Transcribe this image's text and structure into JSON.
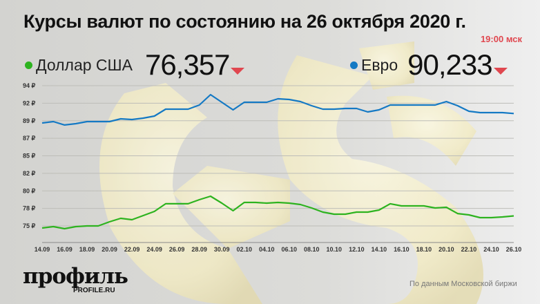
{
  "header": {
    "title": "Курсы валют по состоянию на 26 октября 2020 г.",
    "time": "19:00 мск"
  },
  "currencies": [
    {
      "name": "Доллар США",
      "value": "76,357",
      "trend": "down",
      "color": "#2db31f"
    },
    {
      "name": "Евро",
      "value": "90,233",
      "trend": "down",
      "color": "#1479c4"
    }
  ],
  "colors": {
    "down_arrow": "#e0474f",
    "time": "#e0474f"
  },
  "footer": {
    "logo": "профиль",
    "logo_sub": "PROFILE.RU",
    "source": "По данным Московской биржи"
  },
  "chart_data": {
    "type": "line",
    "grid": true,
    "legend": "top",
    "y_tick_labels": [
      "94 ₽",
      "92 ₽",
      "89 ₽",
      "87 ₽",
      "85 ₽",
      "82 ₽",
      "80 ₽",
      "78 ₽",
      "75 ₽"
    ],
    "ylim": [
      75,
      94
    ],
    "x_tick_labels": [
      "14.09",
      "16.09",
      "18.09",
      "20.09",
      "22.09",
      "24.09",
      "26.09",
      "28.09",
      "30.09",
      "02.10",
      "04.10",
      "06.10",
      "08.10",
      "10.10",
      "12.10",
      "14.10",
      "16.10",
      "18.10",
      "20.10",
      "22.10",
      "24.10",
      "26.10"
    ],
    "x": [
      "14.09",
      "15.09",
      "16.09",
      "17.09",
      "18.09",
      "19.09",
      "20.09",
      "21.09",
      "22.09",
      "23.09",
      "24.09",
      "25.09",
      "26.09",
      "27.09",
      "28.09",
      "29.09",
      "30.09",
      "01.10",
      "02.10",
      "03.10",
      "04.10",
      "05.10",
      "06.10",
      "07.10",
      "08.10",
      "09.10",
      "10.10",
      "11.10",
      "12.10",
      "13.10",
      "14.10",
      "15.10",
      "16.10",
      "17.10",
      "18.10",
      "19.10",
      "20.10",
      "21.10",
      "22.10",
      "23.10",
      "24.10",
      "25.10",
      "26.10"
    ],
    "series": [
      {
        "name": "Евро",
        "color": "#1479c4",
        "values": [
          88.95,
          89.13,
          88.67,
          88.85,
          89.13,
          89.13,
          89.13,
          89.51,
          89.41,
          89.6,
          89.88,
          90.82,
          90.82,
          90.82,
          91.38,
          92.78,
          91.75,
          90.72,
          91.75,
          91.75,
          91.75,
          92.22,
          92.13,
          91.85,
          91.29,
          90.82,
          90.82,
          90.91,
          90.91,
          90.44,
          90.72,
          91.38,
          91.38,
          91.38,
          91.38,
          91.38,
          91.85,
          91.29,
          90.54,
          90.35,
          90.35,
          90.35,
          90.23
        ]
      },
      {
        "name": "Доллар США",
        "color": "#2db31f",
        "values": [
          74.72,
          74.91,
          74.63,
          74.91,
          75.0,
          75.0,
          75.56,
          76.03,
          75.84,
          76.4,
          76.97,
          78.0,
          78.0,
          78.0,
          78.56,
          79.02,
          78.09,
          77.06,
          78.18,
          78.18,
          78.09,
          78.18,
          78.09,
          77.9,
          77.43,
          76.87,
          76.59,
          76.59,
          76.87,
          76.87,
          77.15,
          78.0,
          77.71,
          77.71,
          77.71,
          77.43,
          77.53,
          76.68,
          76.5,
          76.12,
          76.12,
          76.22,
          76.36
        ]
      }
    ]
  }
}
